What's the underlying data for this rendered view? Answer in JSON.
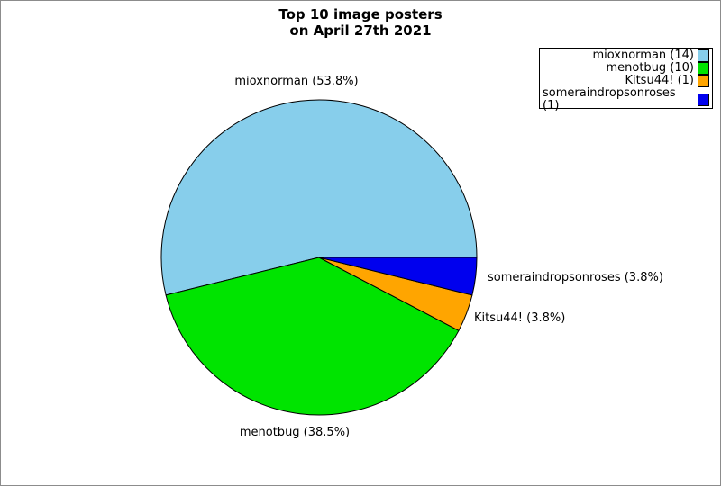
{
  "chart_data": {
    "type": "pie",
    "title": "Top 10 image posters on April 27th 2021",
    "title_lines": [
      "Top 10 image posters",
      "on April 27th 2021"
    ],
    "total": 26,
    "start_angle_deg": 0,
    "direction": "counterclockwise",
    "edge_color": "#000000",
    "background": "#FFFFFF",
    "legend_position": "upper right",
    "legend_swatch_side": "right",
    "series": [
      {
        "name": "mioxnorman",
        "value": 14,
        "percent": "53.8%",
        "color": "#87CEEB",
        "outer_label": "mioxnorman (53.8%)",
        "legend_label": "mioxnorman (14)"
      },
      {
        "name": "menotbug",
        "value": 10,
        "percent": "38.5%",
        "color": "#00E400",
        "outer_label": "menotbug (38.5%)",
        "legend_label": "menotbug (10)"
      },
      {
        "name": "Kitsu44!",
        "value": 1,
        "percent": "3.8%",
        "color": "#FFA500",
        "outer_label": "Kitsu44! (3.8%)",
        "legend_label": "Kitsu44! (1)"
      },
      {
        "name": "someraindropsonroses",
        "value": 1,
        "percent": "3.8%",
        "color": "#0000EE",
        "outer_label": "someraindropsonroses (3.8%)",
        "legend_label": "someraindropsonroses (1)"
      }
    ]
  }
}
